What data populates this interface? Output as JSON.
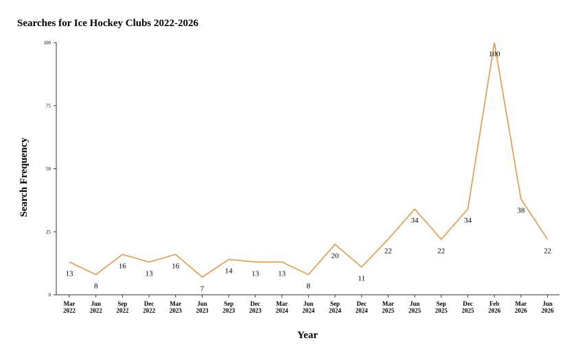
{
  "chart_data": {
    "type": "line",
    "title": "Searches for Ice Hockey Clubs 2022-2026",
    "xlabel": "Year",
    "ylabel": "Search Frequency",
    "categories": [
      [
        "Mar",
        "2022"
      ],
      [
        "Jun",
        "2022"
      ],
      [
        "Sep",
        "2022"
      ],
      [
        "Dec",
        "2022"
      ],
      [
        "Mar",
        "2023"
      ],
      [
        "Jun",
        "2023"
      ],
      [
        "Sep",
        "2023"
      ],
      [
        "Dec",
        "2023"
      ],
      [
        "Mar",
        "2024"
      ],
      [
        "Jun",
        "2024"
      ],
      [
        "Sep",
        "2024"
      ],
      [
        "Dec",
        "2024"
      ],
      [
        "Mar",
        "2025"
      ],
      [
        "Jun",
        "2025"
      ],
      [
        "Sep",
        "2025"
      ],
      [
        "Dec",
        "2025"
      ],
      [
        "Feb",
        "2026"
      ],
      [
        "Mar",
        "2026"
      ],
      [
        "Jun",
        "2026"
      ]
    ],
    "values": [
      13,
      8,
      16,
      13,
      16,
      7,
      14,
      13,
      13,
      8,
      20,
      11,
      22,
      34,
      22,
      34,
      100,
      38,
      22
    ],
    "ylim": [
      0,
      100
    ],
    "yticks": [
      0,
      25,
      50,
      75,
      100
    ],
    "line_color": "#e8923a",
    "grid": false,
    "legend": "none"
  }
}
